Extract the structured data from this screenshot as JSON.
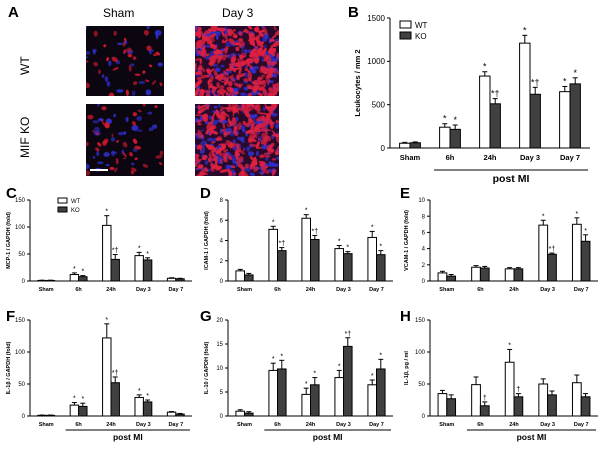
{
  "panel_letters": {
    "A": "A",
    "B": "B",
    "C": "C",
    "D": "D",
    "E": "E",
    "F": "F",
    "G": "G",
    "H": "H"
  },
  "micro": {
    "col_sham": "Sham",
    "col_day3": "Day 3",
    "row_wt": "WT",
    "row_ko": "MIF KO"
  },
  "colors": {
    "wt": "#ffffff",
    "ko": "#404040",
    "stroke": "#000000"
  },
  "chart_data": [
    {
      "id": "B",
      "type": "bar",
      "ylabel": "Leukocytes / mm 2",
      "ylim": [
        0,
        1500
      ],
      "yticks": [
        0,
        500,
        1000,
        1500
      ],
      "categories": [
        "Sham",
        "6h",
        "24h",
        "Day 3",
        "Day 7"
      ],
      "group_label": "post MI",
      "legend": [
        "WT",
        "KO"
      ],
      "series": [
        {
          "name": "WT",
          "values": [
            55,
            240,
            830,
            1210,
            650
          ],
          "errors": [
            10,
            40,
            50,
            90,
            60
          ],
          "marks": [
            "",
            "*",
            "*",
            "*",
            "*"
          ]
        },
        {
          "name": "KO",
          "values": [
            60,
            215,
            510,
            620,
            740
          ],
          "errors": [
            10,
            50,
            60,
            80,
            70
          ],
          "marks": [
            "",
            "*",
            "*†",
            "*†",
            "*"
          ]
        }
      ]
    },
    {
      "id": "C",
      "type": "bar",
      "ylabel": "MCP-1 / GAPDH (fold)",
      "ylim": [
        0,
        150
      ],
      "yticks": [
        0,
        50,
        100,
        150
      ],
      "categories": [
        "Sham",
        "6h",
        "24h",
        "Day 3",
        "Day 7"
      ],
      "group_label": "",
      "legend": [
        "WT",
        "KO"
      ],
      "series": [
        {
          "name": "WT",
          "values": [
            1,
            12,
            103,
            47,
            5
          ],
          "errors": [
            0.5,
            3,
            18,
            6,
            1
          ],
          "marks": [
            "",
            "*",
            "*",
            "*",
            ""
          ]
        },
        {
          "name": "KO",
          "values": [
            1,
            8,
            40,
            39,
            4
          ],
          "errors": [
            0.5,
            2,
            9,
            4,
            1
          ],
          "marks": [
            "",
            "*",
            "*†",
            "*",
            ""
          ]
        }
      ]
    },
    {
      "id": "D",
      "type": "bar",
      "ylabel": "ICAM-1 / GAPDH (fold)",
      "ylim": [
        0,
        8
      ],
      "yticks": [
        0,
        2,
        4,
        6,
        8
      ],
      "categories": [
        "Sham",
        "6h",
        "24h",
        "Day 3",
        "Day 7"
      ],
      "group_label": "",
      "legend": [],
      "series": [
        {
          "name": "WT",
          "values": [
            1.0,
            5.1,
            6.2,
            3.2,
            4.3
          ],
          "errors": [
            0.15,
            0.3,
            0.35,
            0.3,
            0.6
          ],
          "marks": [
            "",
            "*",
            "*",
            "*",
            "*"
          ]
        },
        {
          "name": "KO",
          "values": [
            0.6,
            3.0,
            4.1,
            2.7,
            2.6
          ],
          "errors": [
            0.15,
            0.3,
            0.4,
            0.2,
            0.4
          ],
          "marks": [
            "",
            "*†",
            "*†",
            "*",
            "*"
          ]
        }
      ]
    },
    {
      "id": "E",
      "type": "bar",
      "ylabel": "VCAM-1 / GAPDH (fold)",
      "ylim": [
        0,
        10
      ],
      "yticks": [
        0,
        2,
        4,
        6,
        8,
        10
      ],
      "categories": [
        "Sham",
        "6h",
        "24h",
        "Day 3",
        "Day 7"
      ],
      "group_label": "",
      "legend": [],
      "series": [
        {
          "name": "WT",
          "values": [
            1.0,
            1.7,
            1.5,
            6.9,
            7.0
          ],
          "errors": [
            0.2,
            0.2,
            0.15,
            0.6,
            0.8
          ],
          "marks": [
            "",
            "",
            "",
            "*",
            "*"
          ]
        },
        {
          "name": "KO",
          "values": [
            0.6,
            1.6,
            1.5,
            3.3,
            4.9
          ],
          "errors": [
            0.2,
            0.2,
            0.15,
            0.15,
            0.8
          ],
          "marks": [
            "",
            "",
            "",
            "*†",
            "*"
          ]
        }
      ]
    },
    {
      "id": "F",
      "type": "bar",
      "ylabel": "IL-1β / GAPDH (fold)",
      "ylim": [
        0,
        150
      ],
      "yticks": [
        0,
        50,
        100,
        150
      ],
      "categories": [
        "Sham",
        "6h",
        "24h",
        "Day 3",
        "Day 7"
      ],
      "group_label": "post MI",
      "legend": [],
      "series": [
        {
          "name": "WT",
          "values": [
            1,
            17,
            122,
            29,
            6
          ],
          "errors": [
            0.5,
            4,
            22,
            4,
            1
          ],
          "marks": [
            "",
            "*",
            "*",
            "*",
            ""
          ]
        },
        {
          "name": "KO",
          "values": [
            1,
            15,
            52,
            22,
            3
          ],
          "errors": [
            0.5,
            5,
            9,
            3,
            1
          ],
          "marks": [
            "",
            "*",
            "*†",
            "*",
            ""
          ]
        }
      ]
    },
    {
      "id": "G",
      "type": "bar",
      "ylabel": "IL-10 / GAPDH (fold)",
      "ylim": [
        0,
        20
      ],
      "yticks": [
        0,
        5,
        10,
        15,
        20
      ],
      "categories": [
        "Sham",
        "6h",
        "24h",
        "Day 3",
        "Day 7"
      ],
      "group_label": "post MI",
      "legend": [],
      "series": [
        {
          "name": "WT",
          "values": [
            1.0,
            9.5,
            4.5,
            8.0,
            6.5
          ],
          "errors": [
            0.3,
            1.5,
            1.3,
            1.5,
            1.0
          ],
          "marks": [
            "",
            "*",
            "*",
            "*",
            "*"
          ]
        },
        {
          "name": "KO",
          "values": [
            0.6,
            9.8,
            6.5,
            14.5,
            9.8
          ],
          "errors": [
            0.3,
            1.8,
            1.5,
            1.8,
            2.0
          ],
          "marks": [
            "",
            "*",
            "*",
            "*†",
            "*"
          ]
        }
      ]
    },
    {
      "id": "H",
      "type": "bar",
      "ylabel": "IL-1β, pg / ml",
      "ylim": [
        0,
        150
      ],
      "yticks": [
        0,
        50,
        100,
        150
      ],
      "categories": [
        "Sham",
        "6h",
        "24h",
        "Day 3",
        "Day 7"
      ],
      "group_label": "post MI",
      "legend": [],
      "series": [
        {
          "name": "WT",
          "values": [
            35,
            49,
            84,
            50,
            52
          ],
          "errors": [
            5,
            12,
            20,
            8,
            12
          ],
          "marks": [
            "",
            "",
            "*",
            "",
            ""
          ]
        },
        {
          "name": "KO",
          "values": [
            27,
            16,
            30,
            33,
            30
          ],
          "errors": [
            6,
            6,
            5,
            6,
            5
          ],
          "marks": [
            "",
            "†",
            "†",
            "",
            ""
          ]
        }
      ]
    }
  ]
}
